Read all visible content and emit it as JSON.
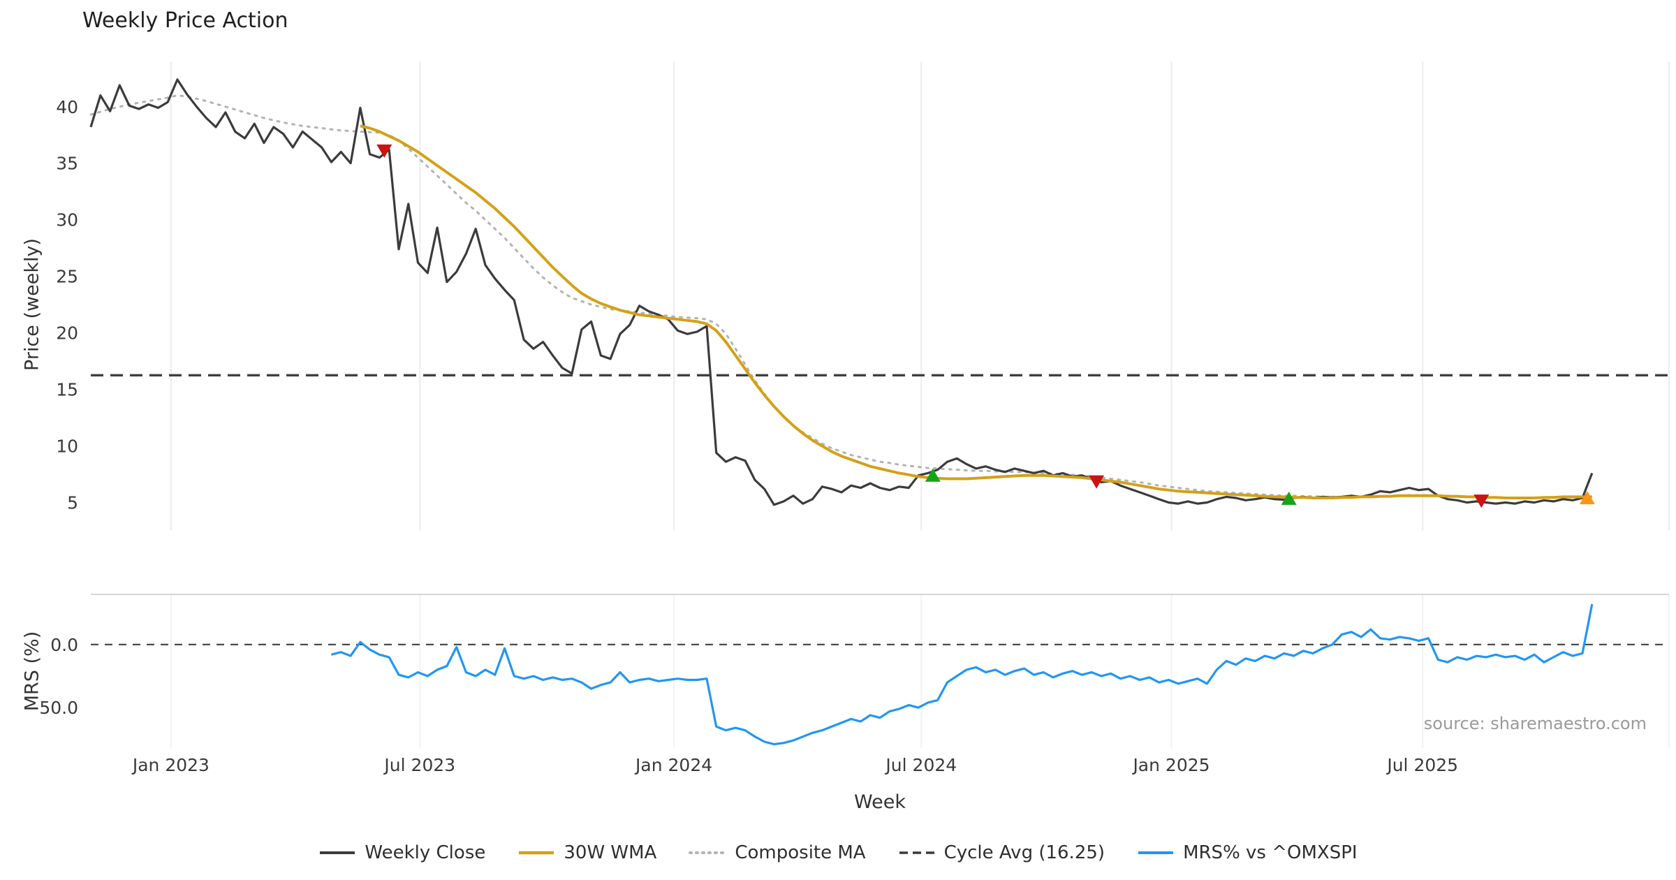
{
  "title": "Weekly Price Action",
  "source": "source: sharemaestro.com",
  "axes": {
    "top_ylabel": "Price (weekly)",
    "bottom_ylabel": "MRS (%)",
    "xlabel": "Week"
  },
  "legend": {
    "items": [
      {
        "label": "Weekly Close",
        "color": "#3b3b3b",
        "style": "solid"
      },
      {
        "label": "30W WMA",
        "color": "#d4a017",
        "style": "solid"
      },
      {
        "label": "Composite MA",
        "color": "#b3b3b3",
        "style": "dotted"
      },
      {
        "label": "Cycle Avg (16.25)",
        "color": "#3b3b3b",
        "style": "dashed"
      },
      {
        "label": "MRS% vs ^OMXSPI",
        "color": "#2196f3",
        "style": "solid"
      }
    ]
  },
  "chart_data": {
    "type": "line",
    "title": "Weekly Price Action",
    "xlabel": "Week",
    "x_unit": "week-index",
    "x_max": 164,
    "x_ticks": [
      {
        "x": 8.34,
        "label": "Jan 2023"
      },
      {
        "x": 34.2,
        "label": "Jul 2023"
      },
      {
        "x": 60.6,
        "label": "Jan 2024"
      },
      {
        "x": 86.3,
        "label": "Jul 2024"
      },
      {
        "x": 112.3,
        "label": "Jan 2025"
      },
      {
        "x": 138.4,
        "label": "Jul 2025"
      },
      {
        "x": 164,
        "label": ""
      }
    ],
    "top_panel": {
      "ylabel": "Price (weekly)",
      "ylim": [
        2.5,
        44
      ],
      "yticks": [
        40,
        35,
        30,
        25,
        20,
        15,
        10,
        5
      ],
      "grid": "vertical",
      "cycle_avg": 16.25,
      "cycle_avg_color": "#3f3f3f",
      "series": [
        {
          "id": "composite-ma-line",
          "name": "Composite MA",
          "color": "#b3b3b3",
          "style": "dotted",
          "width": 3,
          "x_start": 0,
          "values": [
            39.3,
            39.55,
            39.8,
            40.0,
            40.2,
            40.35,
            40.5,
            40.65,
            40.8,
            41.0,
            40.9,
            40.7,
            40.5,
            40.25,
            40.0,
            39.75,
            39.5,
            39.25,
            39.0,
            38.8,
            38.6,
            38.45,
            38.3,
            38.2,
            38.1,
            38.0,
            37.9,
            37.85,
            37.8,
            37.75,
            37.7,
            37.5,
            37.0,
            36.3,
            35.5,
            34.7,
            33.9,
            33.1,
            32.3,
            31.5,
            30.8,
            30.0,
            29.2,
            28.4,
            27.5,
            26.6,
            25.7,
            24.9,
            24.2,
            23.6,
            23.1,
            22.8,
            22.5,
            22.3,
            22.1,
            22.0,
            21.9,
            21.8,
            21.7,
            21.6,
            21.5,
            21.4,
            21.35,
            21.3,
            21.2,
            20.8,
            19.9,
            18.6,
            17.2,
            15.8,
            14.6,
            13.5,
            12.6,
            11.8,
            11.2,
            10.7,
            10.2,
            9.8,
            9.5,
            9.2,
            9.0,
            8.8,
            8.6,
            8.5,
            8.35,
            8.25,
            8.15,
            8.05,
            8.0,
            7.95,
            7.9,
            7.85,
            7.8,
            7.8,
            7.75,
            7.75,
            7.7,
            7.7,
            7.65,
            7.6,
            7.55,
            7.5,
            7.45,
            7.4,
            7.3,
            7.2,
            7.1,
            7.0,
            6.9,
            6.8,
            6.65,
            6.5,
            6.4,
            6.3,
            6.2,
            6.1,
            6.0,
            5.95,
            5.9,
            5.85,
            5.8,
            5.75,
            5.7,
            5.65,
            5.6,
            5.6,
            5.55,
            5.55,
            5.5,
            5.5,
            5.5,
            5.5,
            5.5,
            5.55,
            5.55,
            5.6,
            5.6,
            5.65,
            5.65,
            5.65,
            5.6,
            5.6,
            5.55,
            5.55,
            5.5,
            5.5,
            5.45,
            5.45,
            5.4,
            5.4,
            5.4,
            5.4,
            5.45,
            5.45,
            5.5,
            5.5,
            5.5
          ]
        },
        {
          "id": "weekly-close-line",
          "name": "Weekly Close",
          "color": "#3b3b3b",
          "style": "solid",
          "width": 3.2,
          "x_start": 0,
          "values": [
            38.2,
            41.0,
            39.6,
            41.9,
            40.1,
            39.8,
            40.2,
            39.9,
            40.4,
            42.4,
            41.1,
            40.0,
            39.0,
            38.2,
            39.5,
            37.8,
            37.2,
            38.5,
            36.8,
            38.2,
            37.6,
            36.4,
            37.8,
            37.1,
            36.4,
            35.1,
            36.0,
            35.0,
            39.9,
            35.8,
            35.5,
            36.2,
            27.4,
            31.4,
            26.2,
            25.3,
            29.3,
            24.5,
            25.4,
            27.0,
            29.2,
            26.0,
            24.8,
            23.8,
            22.9,
            19.4,
            18.6,
            19.2,
            18.0,
            16.9,
            16.4,
            20.3,
            21.0,
            18.0,
            17.7,
            19.9,
            20.7,
            22.4,
            21.9,
            21.6,
            21.2,
            20.2,
            19.9,
            20.1,
            20.6,
            9.4,
            8.6,
            9.0,
            8.7,
            7.0,
            6.2,
            4.8,
            5.1,
            5.6,
            4.9,
            5.3,
            6.4,
            6.2,
            5.9,
            6.5,
            6.3,
            6.7,
            6.3,
            6.1,
            6.4,
            6.3,
            7.4,
            7.6,
            7.9,
            8.6,
            8.9,
            8.4,
            8.0,
            8.2,
            7.9,
            7.7,
            8.0,
            7.8,
            7.6,
            7.8,
            7.4,
            7.6,
            7.3,
            7.4,
            7.1,
            6.8,
            6.9,
            6.5,
            6.2,
            5.9,
            5.6,
            5.3,
            5.0,
            4.9,
            5.1,
            4.9,
            5.0,
            5.3,
            5.5,
            5.4,
            5.2,
            5.3,
            5.45,
            5.3,
            5.25,
            5.4,
            5.5,
            5.4,
            5.5,
            5.45,
            5.5,
            5.6,
            5.5,
            5.7,
            6.0,
            5.9,
            6.1,
            6.3,
            6.1,
            6.2,
            5.6,
            5.3,
            5.2,
            5.0,
            5.1,
            5.0,
            4.9,
            5.0,
            4.9,
            5.1,
            5.0,
            5.2,
            5.1,
            5.3,
            5.2,
            5.4,
            7.6
          ]
        },
        {
          "id": "wma-line",
          "name": "30W WMA",
          "color": "#d4a017",
          "style": "solid",
          "width": 4,
          "x_start": 28,
          "values": [
            38.3,
            38.1,
            37.8,
            37.4,
            37.0,
            36.5,
            36.0,
            35.4,
            34.8,
            34.2,
            33.6,
            33.0,
            32.4,
            31.7,
            31.0,
            30.2,
            29.4,
            28.5,
            27.6,
            26.7,
            25.8,
            25.0,
            24.2,
            23.5,
            23.0,
            22.6,
            22.3,
            22.0,
            21.8,
            21.6,
            21.5,
            21.4,
            21.3,
            21.2,
            21.1,
            21.0,
            20.8,
            20.2,
            19.2,
            18.0,
            16.8,
            15.6,
            14.5,
            13.5,
            12.6,
            11.8,
            11.1,
            10.5,
            10.0,
            9.5,
            9.1,
            8.8,
            8.5,
            8.2,
            8.0,
            7.8,
            7.6,
            7.45,
            7.3,
            7.2,
            7.15,
            7.1,
            7.1,
            7.1,
            7.15,
            7.2,
            7.25,
            7.3,
            7.35,
            7.4,
            7.4,
            7.4,
            7.35,
            7.3,
            7.25,
            7.2,
            7.1,
            7.0,
            6.9,
            6.8,
            6.65,
            6.5,
            6.35,
            6.2,
            6.1,
            6.0,
            5.95,
            5.9,
            5.85,
            5.8,
            5.75,
            5.7,
            5.65,
            5.6,
            5.55,
            5.5,
            5.5,
            5.45,
            5.45,
            5.4,
            5.4,
            5.4,
            5.45,
            5.45,
            5.5,
            5.5,
            5.55,
            5.55,
            5.6,
            5.6,
            5.6,
            5.6,
            5.6,
            5.55,
            5.55,
            5.5,
            5.5,
            5.45,
            5.45,
            5.4,
            5.4,
            5.4,
            5.4,
            5.45,
            5.45,
            5.5,
            5.5,
            5.5,
            5.5
          ]
        }
      ],
      "markers": [
        {
          "name": "sell-signal-1",
          "shape": "down",
          "color": "#cc1212",
          "x": 30.5,
          "y": 36.1
        },
        {
          "name": "buy-signal-1",
          "shape": "up",
          "color": "#17a317",
          "x": 87.5,
          "y": 7.4
        },
        {
          "name": "sell-signal-2",
          "shape": "down",
          "color": "#cc1212",
          "x": 104.5,
          "y": 6.85
        },
        {
          "name": "buy-signal-2",
          "shape": "up",
          "color": "#17a317",
          "x": 124.5,
          "y": 5.35
        },
        {
          "name": "sell-signal-3",
          "shape": "down",
          "color": "#cc1212",
          "x": 144.5,
          "y": 5.15
        },
        {
          "name": "latest-signal",
          "shape": "up",
          "color": "#ff9415",
          "x": 155.5,
          "y": 5.4
        }
      ]
    },
    "bottom_panel": {
      "ylabel": "MRS (%)",
      "ylim": [
        -82,
        39.8
      ],
      "yticks": [
        {
          "v": 0,
          "label": "0.0"
        },
        {
          "v": -50,
          "label": "−50.0"
        }
      ],
      "zero_line": 0,
      "series": [
        {
          "id": "mrs-line",
          "name": "MRS% vs ^OMXSPI",
          "color": "#2196f3",
          "style": "solid",
          "width": 3.2,
          "x_start": 25,
          "values": [
            -8,
            -6,
            -9,
            2,
            -4,
            -8,
            -10,
            -24,
            -26,
            -22,
            -25,
            -20,
            -17,
            -2,
            -22,
            -25,
            -20,
            -24,
            -3,
            -25,
            -27,
            -25,
            -28,
            -26,
            -28,
            -27,
            -30,
            -35,
            -32,
            -30,
            -22,
            -30,
            -28,
            -27,
            -29,
            -28,
            -27,
            -28,
            -28,
            -27,
            -65,
            -68,
            -66,
            -68,
            -73,
            -77,
            -79,
            -78,
            -76,
            -73,
            -70,
            -68,
            -65,
            -62,
            -59,
            -61,
            -56,
            -58,
            -53,
            -51,
            -48,
            -50,
            -46,
            -44,
            -30,
            -25,
            -20,
            -18,
            -22,
            -20,
            -24,
            -21,
            -19,
            -24,
            -22,
            -26,
            -23,
            -21,
            -24,
            -22,
            -25,
            -23,
            -27,
            -25,
            -28,
            -26,
            -30,
            -28,
            -31,
            -29,
            -27,
            -31,
            -20,
            -13,
            -16,
            -11,
            -13,
            -9,
            -11,
            -7,
            -9,
            -5,
            -7,
            -3,
            0,
            8,
            10,
            6,
            12,
            5,
            4,
            6,
            5,
            3,
            5,
            -12,
            -14,
            -10,
            -12,
            -9,
            -10,
            -8,
            -10,
            -9,
            -12,
            -8,
            -14,
            -10,
            -6,
            -9,
            -7,
            32
          ]
        }
      ]
    }
  }
}
